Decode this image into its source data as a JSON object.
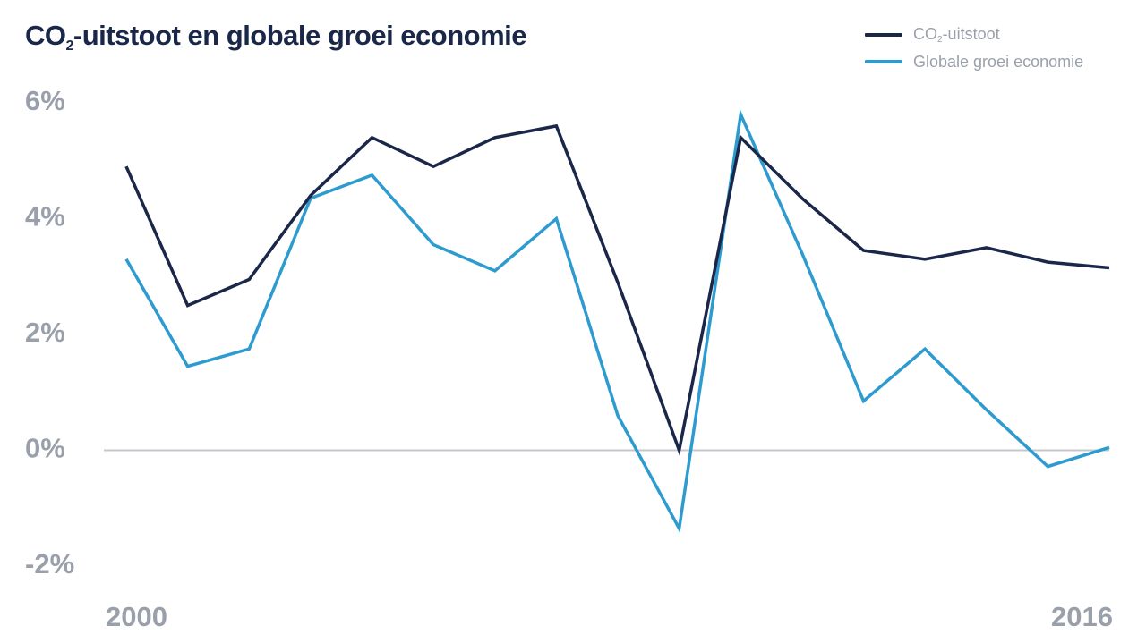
{
  "title": {
    "prefix": "CO",
    "sub": "2",
    "suffix": "-uitstoot en globale groei economie"
  },
  "legend": [
    {
      "prefix": "CO",
      "sub": "2",
      "suffix": "-uitstoot",
      "color": "#1a2748"
    },
    {
      "prefix": "Globale groei economie",
      "sub": "",
      "suffix": "",
      "color": "#2e9bd0"
    }
  ],
  "chart_data": {
    "type": "line",
    "x": [
      2000,
      2001,
      2002,
      2003,
      2004,
      2005,
      2006,
      2007,
      2008,
      2009,
      2010,
      2011,
      2012,
      2013,
      2014,
      2015,
      2016
    ],
    "x_tick_labels": [
      "2000",
      "2016"
    ],
    "y_tick_labels": [
      "6%",
      "4%",
      "2%",
      "0%",
      "-2%"
    ],
    "y_ticks": [
      6,
      4,
      2,
      0,
      -2
    ],
    "ylim": [
      -2,
      6
    ],
    "zero_line": true,
    "series": [
      {
        "name": "CO2-uitstoot",
        "color": "#1a2748",
        "values": [
          4.9,
          2.5,
          2.95,
          4.4,
          5.4,
          4.9,
          5.4,
          5.6,
          2.9,
          0.0,
          5.4,
          4.35,
          3.45,
          3.3,
          3.5,
          3.25,
          3.15
        ]
      },
      {
        "name": "Globale groei economie",
        "color": "#2e9bd0",
        "values": [
          3.3,
          1.45,
          1.75,
          4.35,
          4.75,
          3.55,
          3.1,
          4.0,
          0.6,
          -1.35,
          5.8,
          3.4,
          0.85,
          1.75,
          0.7,
          -0.28,
          0.05
        ]
      }
    ]
  }
}
